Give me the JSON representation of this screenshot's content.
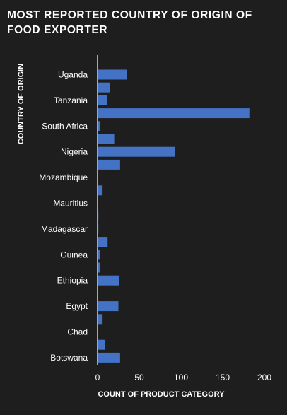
{
  "chart_data": {
    "type": "bar",
    "orientation": "horizontal",
    "title": "MOST REPORTED COUNTRY OF ORIGIN OF FOOD EXPORTER",
    "xlabel": "COUNT OF PRODUCT CATEGORY",
    "ylabel": "COUNTRY OF ORIGIN",
    "xlim": [
      0,
      200
    ],
    "xticks": [
      "0",
      "50",
      "100",
      "150",
      "200"
    ],
    "grid": false,
    "bar_color": "#4472c4",
    "categories": [
      "Uganda",
      "",
      "Tanzania",
      "",
      "South Africa",
      "",
      "Nigeria",
      "",
      "Mozambique",
      "",
      "Mauritius",
      "",
      "Madagascar",
      "",
      "Guinea",
      "",
      "Ethiopia",
      "",
      "Egypt",
      "",
      "Chad",
      "",
      "Botswana"
    ],
    "values": [
      35,
      15,
      11,
      182,
      3,
      20,
      93,
      27,
      0,
      6,
      0,
      1,
      1,
      12,
      3,
      3,
      26,
      0,
      25,
      6,
      0,
      9,
      27
    ]
  },
  "colors": {
    "background": "#1e1e1e",
    "text": "#ffffff",
    "axis": "#a6a6a6",
    "bar": "#4472c4"
  }
}
